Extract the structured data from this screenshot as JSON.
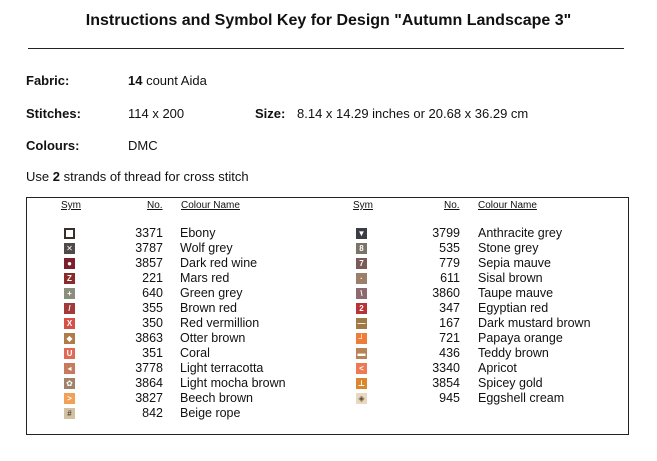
{
  "title": "Instructions and Symbol Key for Design \"Autumn Landscape 3\"",
  "fabric": {
    "label": "Fabric:",
    "count": "14",
    "suffix": " count Aida"
  },
  "stitches": {
    "label": "Stitches:",
    "value": "114 x 200"
  },
  "size": {
    "label": "Size:",
    "value": "8.14 x 14.29 inches or 20.68 x 36.29 cm"
  },
  "colours": {
    "label": "Colours:",
    "value": "DMC"
  },
  "strands": {
    "prefix": "Use ",
    "count": "2",
    "suffix": " strands of thread for cross stitch"
  },
  "table_headers": {
    "sym": "Sym",
    "no": "No.",
    "name": "Colour Name"
  },
  "left_rows": [
    {
      "glyph": "",
      "icon": "hollow-square-icon",
      "color": "#3a2e2a",
      "no": "3371",
      "name": "Ebony"
    },
    {
      "glyph": "✕",
      "icon": "cross-icon",
      "color": "#4f4a47",
      "no": "3787",
      "name": "Wolf grey"
    },
    {
      "glyph": "●",
      "icon": "dot-icon",
      "color": "#7a1f2b",
      "no": "3857",
      "name": "Dark red wine"
    },
    {
      "glyph": "Z",
      "icon": "letter-z-icon",
      "color": "#8a2a2a",
      "no": "221",
      "name": "Mars red"
    },
    {
      "glyph": "+",
      "icon": "plus-icon",
      "color": "#8a8f7d",
      "no": "640",
      "name": "Green grey"
    },
    {
      "glyph": "/",
      "icon": "slash-icon",
      "color": "#a23a3a",
      "no": "355",
      "name": "Brown red"
    },
    {
      "glyph": "X",
      "icon": "hourglass-icon",
      "color": "#d6504a",
      "no": "350",
      "name": "Red vermillion"
    },
    {
      "glyph": "◆",
      "icon": "diamond-icon",
      "color": "#b07a4a",
      "no": "3863",
      "name": "Otter brown"
    },
    {
      "glyph": "U",
      "icon": "letter-u-icon",
      "color": "#e06a56",
      "no": "351",
      "name": "Coral"
    },
    {
      "glyph": "◂",
      "icon": "arrow-left-icon",
      "color": "#c87a5e",
      "no": "3778",
      "name": "Light terracotta"
    },
    {
      "glyph": "✿",
      "icon": "flower-icon",
      "color": "#a0826a",
      "no": "3864",
      "name": "Light mocha brown"
    },
    {
      "glyph": ">",
      "icon": "chevron-right-icon",
      "color": "#f2a056",
      "no": "3827",
      "name": "Beech brown"
    },
    {
      "glyph": "#",
      "icon": "hash-icon",
      "color": "#d2c2a4",
      "no": "842",
      "name": "Beige rope"
    }
  ],
  "right_rows": [
    {
      "glyph": "▼",
      "icon": "down-triangle-icon",
      "color": "#3c3d44",
      "no": "3799",
      "name": "Anthracite grey"
    },
    {
      "glyph": "8",
      "icon": "digit-8-icon",
      "color": "#7a7468",
      "no": "535",
      "name": "Stone grey"
    },
    {
      "glyph": "7",
      "icon": "digit-7-icon",
      "color": "#7b5b58",
      "no": "779",
      "name": "Sepia mauve"
    },
    {
      "glyph": "·",
      "icon": "small-dot-icon",
      "color": "#9b7f6b",
      "no": "611",
      "name": "Sisal brown"
    },
    {
      "glyph": "\\",
      "icon": "backslash-icon",
      "color": "#8d6a70",
      "no": "3860",
      "name": "Taupe mauve"
    },
    {
      "glyph": "2",
      "icon": "digit-2-icon",
      "color": "#b83338",
      "no": "347",
      "name": "Egyptian red"
    },
    {
      "glyph": "—",
      "icon": "dash-icon",
      "color": "#a07a45",
      "no": "167",
      "name": "Dark mustard brown"
    },
    {
      "glyph": "┘",
      "icon": "corner-icon",
      "color": "#ef7d3a",
      "no": "721",
      "name": "Papaya orange"
    },
    {
      "glyph": "▬",
      "icon": "bar-icon",
      "color": "#b88457",
      "no": "436",
      "name": "Teddy brown"
    },
    {
      "glyph": "<",
      "icon": "chevron-left-icon",
      "color": "#ee7a55",
      "no": "3340",
      "name": "Apricot"
    },
    {
      "glyph": "⊥",
      "icon": "up-tack-icon",
      "color": "#d9882e",
      "no": "3854",
      "name": "Spicey gold"
    },
    {
      "glyph": "◈",
      "icon": "diamond-dots-icon",
      "color": "#e8d8bd",
      "no": "945",
      "name": "Eggshell cream"
    }
  ]
}
